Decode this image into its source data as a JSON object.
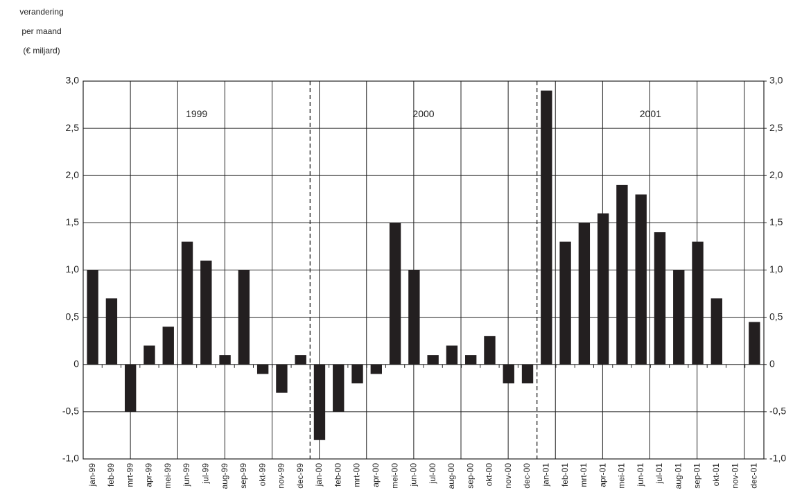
{
  "chart_data": {
    "type": "bar",
    "ylabel": [
      "verandering",
      "per maand",
      "(€ miljard)"
    ],
    "categories": [
      "jan-99",
      "feb-99",
      "mrt-99",
      "apr-99",
      "mei-99",
      "jun-99",
      "jul-99",
      "aug-99",
      "sep-99",
      "okt-99",
      "nov-99",
      "dec-99",
      "jan-00",
      "feb-00",
      "mrt-00",
      "apr-00",
      "mei-00",
      "jun-00",
      "jul-00",
      "aug-00",
      "sep-00",
      "okt-00",
      "nov-00",
      "dec-00",
      "jan-01",
      "feb-01",
      "mrt-01",
      "apr-01",
      "mei-01",
      "jun-01",
      "jul-01",
      "aug-01",
      "sep-01",
      "okt-01",
      "nov-01",
      "dec-01"
    ],
    "values": [
      1.0,
      0.7,
      -0.5,
      0.2,
      0.4,
      1.3,
      1.1,
      0.1,
      1.0,
      -0.1,
      -0.3,
      0.1,
      -0.8,
      -0.5,
      -0.2,
      -0.1,
      1.5,
      1.0,
      0.1,
      0.2,
      0.1,
      0.3,
      -0.2,
      -0.2,
      2.9,
      1.3,
      1.5,
      1.6,
      1.9,
      1.8,
      1.4,
      1.0,
      1.3,
      0.7,
      0,
      0.45
    ],
    "color": "#231f20",
    "annotations": [
      "1999",
      "2000",
      "2001"
    ],
    "ylim": [
      -1.0,
      3.0
    ],
    "yticks": [
      {
        "value": -1.0,
        "label": "-1,0"
      },
      {
        "value": -0.5,
        "label": "-0,5"
      },
      0,
      {
        "value": 0.5,
        "label": "0,5"
      },
      {
        "value": 1.0,
        "label": "1,0"
      },
      {
        "value": 1.5,
        "label": "1,5"
      },
      {
        "value": 2.0,
        "label": "2,0"
      },
      {
        "value": 2.5,
        "label": "2,5"
      },
      {
        "value": 3.0,
        "label": "3,0"
      }
    ],
    "y2lim": [
      -1.0,
      3.0
    ],
    "y2ticks": [
      {
        "value": -1.0,
        "label": "-1,0"
      },
      {
        "value": -0.5,
        "label": "-0,5"
      },
      0,
      {
        "value": 0.5,
        "label": "0,5"
      },
      {
        "value": 1.0,
        "label": "1,0"
      },
      {
        "value": 1.5,
        "label": "1,5"
      },
      {
        "value": 2.0,
        "label": "2,0"
      },
      {
        "value": 2.5,
        "label": "2,5"
      },
      {
        "value": 3.0,
        "label": "3,0"
      }
    ],
    "grid": true
  }
}
